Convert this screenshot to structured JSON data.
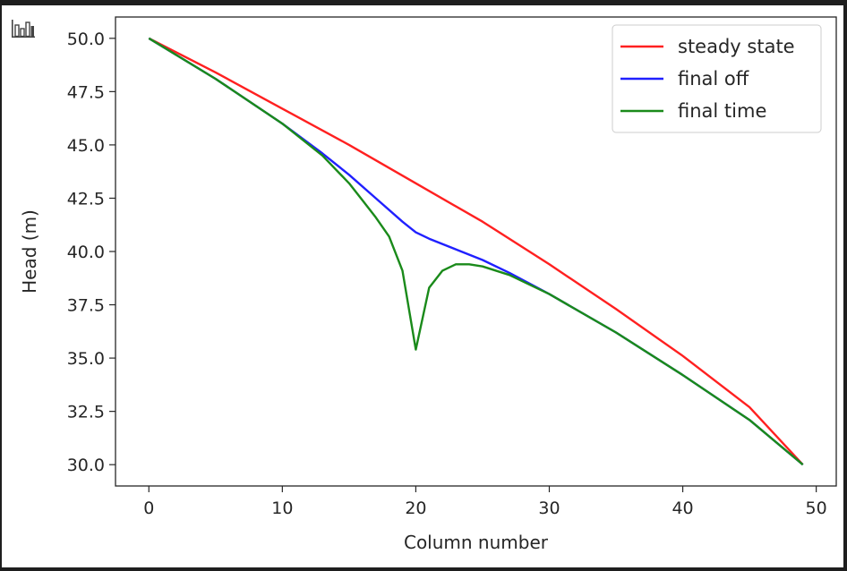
{
  "colors": {
    "steady": "#ff2020",
    "final_off": "#2020ff",
    "final_time": "#1a8a1a",
    "axis": "#262626",
    "background": "#ffffff",
    "legend_border": "#cccccc"
  },
  "icons": {
    "toolbar": "bar-chart-icon"
  },
  "chart_data": {
    "type": "line",
    "xlabel": "Column number",
    "ylabel": "Head (m)",
    "xlim": [
      -2.5,
      51.5
    ],
    "ylim": [
      29.0,
      51.0
    ],
    "xticks": [
      0,
      10,
      20,
      30,
      40,
      50
    ],
    "yticks": [
      30.0,
      32.5,
      35.0,
      37.5,
      40.0,
      42.5,
      45.0,
      47.5,
      50.0
    ],
    "xtick_labels": [
      "0",
      "10",
      "20",
      "30",
      "40",
      "50"
    ],
    "ytick_labels": [
      "30.0",
      "32.5",
      "35.0",
      "37.5",
      "40.0",
      "42.5",
      "45.0",
      "47.5",
      "50.0"
    ],
    "grid": false,
    "legend_position": "top-right",
    "series": [
      {
        "name": "steady state",
        "color_key": "steady",
        "x": [
          0,
          5,
          10,
          15,
          20,
          25,
          30,
          35,
          40,
          45,
          49
        ],
        "y": [
          50.0,
          48.4,
          46.7,
          45.0,
          43.2,
          41.4,
          39.4,
          37.3,
          35.1,
          32.7,
          30.0
        ]
      },
      {
        "name": "final off",
        "color_key": "final_off",
        "x": [
          0,
          5,
          10,
          13,
          15,
          17,
          19,
          20,
          21,
          23,
          25,
          27,
          30,
          35,
          40,
          45,
          49
        ],
        "y": [
          50.0,
          48.1,
          46.0,
          44.6,
          43.6,
          42.5,
          41.4,
          40.9,
          40.6,
          40.1,
          39.6,
          39.0,
          38.0,
          36.2,
          34.2,
          32.1,
          30.0
        ]
      },
      {
        "name": "final time",
        "color_key": "final_time",
        "x": [
          0,
          5,
          10,
          13,
          15,
          16,
          17,
          18,
          19,
          20,
          21,
          22,
          23,
          24,
          25,
          27,
          30,
          35,
          40,
          45,
          49
        ],
        "y": [
          50.0,
          48.1,
          46.0,
          44.5,
          43.2,
          42.4,
          41.6,
          40.7,
          39.1,
          35.4,
          38.3,
          39.1,
          39.4,
          39.4,
          39.3,
          38.9,
          38.0,
          36.2,
          34.2,
          32.1,
          30.0
        ]
      }
    ]
  }
}
